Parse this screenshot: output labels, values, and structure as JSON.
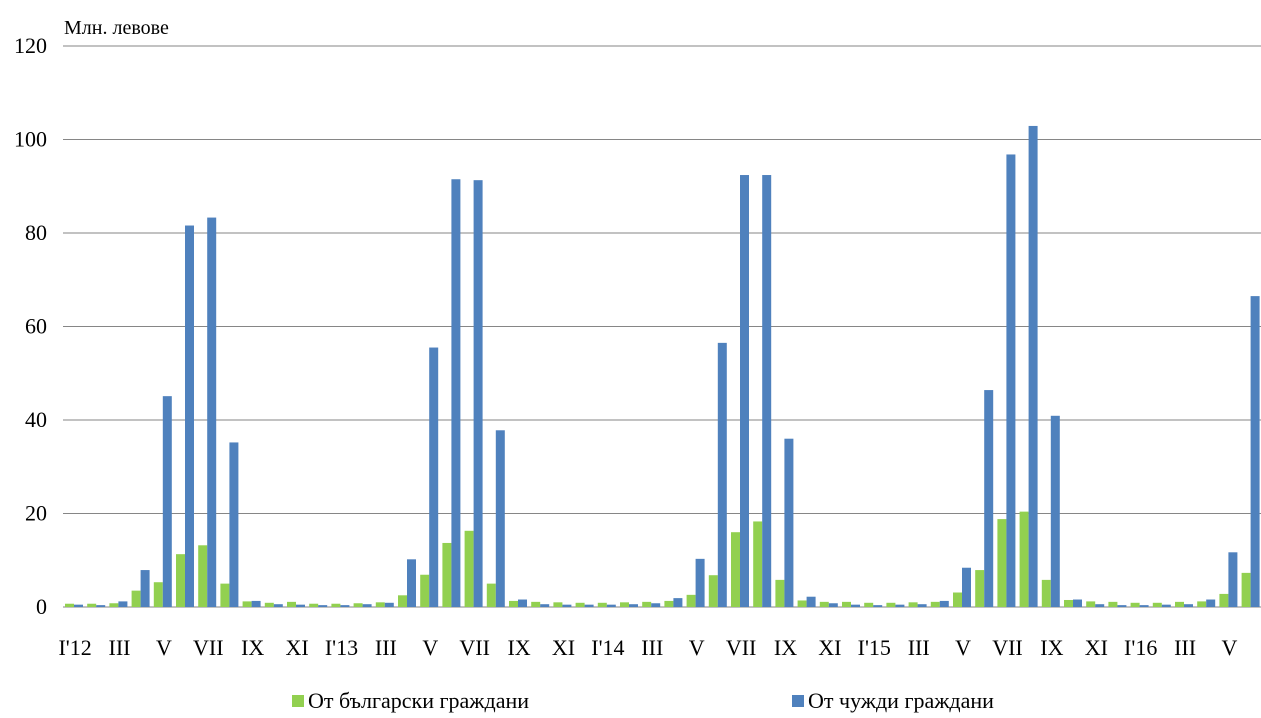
{
  "chart_data": {
    "type": "bar",
    "y_unit_label": "Млн. левове",
    "ylim": [
      0,
      120
    ],
    "y_ticks": [
      0,
      20,
      40,
      60,
      80,
      100,
      120
    ],
    "grid": true,
    "legend_position": "bottom",
    "x_tick_labels": [
      "I'12",
      "III",
      "V",
      "VII",
      "IX",
      "XI",
      "I'13",
      "III",
      "V",
      "VII",
      "IX",
      "XI",
      "I'14",
      "III",
      "V",
      "VII",
      "IX",
      "XI",
      "I'15",
      "III",
      "V",
      "VII",
      "IX",
      "XI",
      "I'16",
      "III",
      "V"
    ],
    "categories": [
      "I'12",
      "II",
      "III",
      "IV",
      "V",
      "VI",
      "VII",
      "VIII",
      "IX",
      "X",
      "XI",
      "XII",
      "I'13",
      "II",
      "III",
      "IV",
      "V",
      "VI",
      "VII",
      "VIII",
      "IX",
      "X",
      "XI",
      "XII",
      "I'14",
      "II",
      "III",
      "IV",
      "V",
      "VI",
      "VII",
      "VIII",
      "IX",
      "X",
      "XI",
      "XII",
      "I'15",
      "II",
      "III",
      "IV",
      "V",
      "VI",
      "VII",
      "VIII",
      "IX",
      "X",
      "XI",
      "XII",
      "I'16",
      "II",
      "III",
      "IV",
      "V",
      "VI"
    ],
    "series": [
      {
        "name": "От български граждани",
        "color": "#92d050",
        "values": [
          0.7,
          0.7,
          0.8,
          3.5,
          5.3,
          11.3,
          13.2,
          5.0,
          1.2,
          0.9,
          1.1,
          0.7,
          0.7,
          0.8,
          1.0,
          2.5,
          6.9,
          13.7,
          16.3,
          5.0,
          1.3,
          1.1,
          1.0,
          0.9,
          0.9,
          1.0,
          1.1,
          1.3,
          2.6,
          6.8,
          16.0,
          18.3,
          5.8,
          1.4,
          1.1,
          1.1,
          0.9,
          0.9,
          1.0,
          1.1,
          3.1,
          7.9,
          18.8,
          20.4,
          5.8,
          1.5,
          1.2,
          1.1,
          0.9,
          0.9,
          1.1,
          1.2,
          2.8,
          7.3
        ]
      },
      {
        "name": "От чужди граждани",
        "color": "#4f81bd",
        "values": [
          0.5,
          0.4,
          1.2,
          7.9,
          45.1,
          81.6,
          83.3,
          35.2,
          1.3,
          0.6,
          0.5,
          0.4,
          0.4,
          0.6,
          0.9,
          10.2,
          55.5,
          91.5,
          91.3,
          37.8,
          1.6,
          0.6,
          0.5,
          0.5,
          0.5,
          0.6,
          0.8,
          1.9,
          10.3,
          56.5,
          92.4,
          92.4,
          36.0,
          2.2,
          0.8,
          0.5,
          0.4,
          0.5,
          0.6,
          1.3,
          8.4,
          46.4,
          96.8,
          102.9,
          40.9,
          1.6,
          0.6,
          0.4,
          0.4,
          0.5,
          0.6,
          1.6,
          11.7,
          66.5
        ]
      }
    ]
  }
}
